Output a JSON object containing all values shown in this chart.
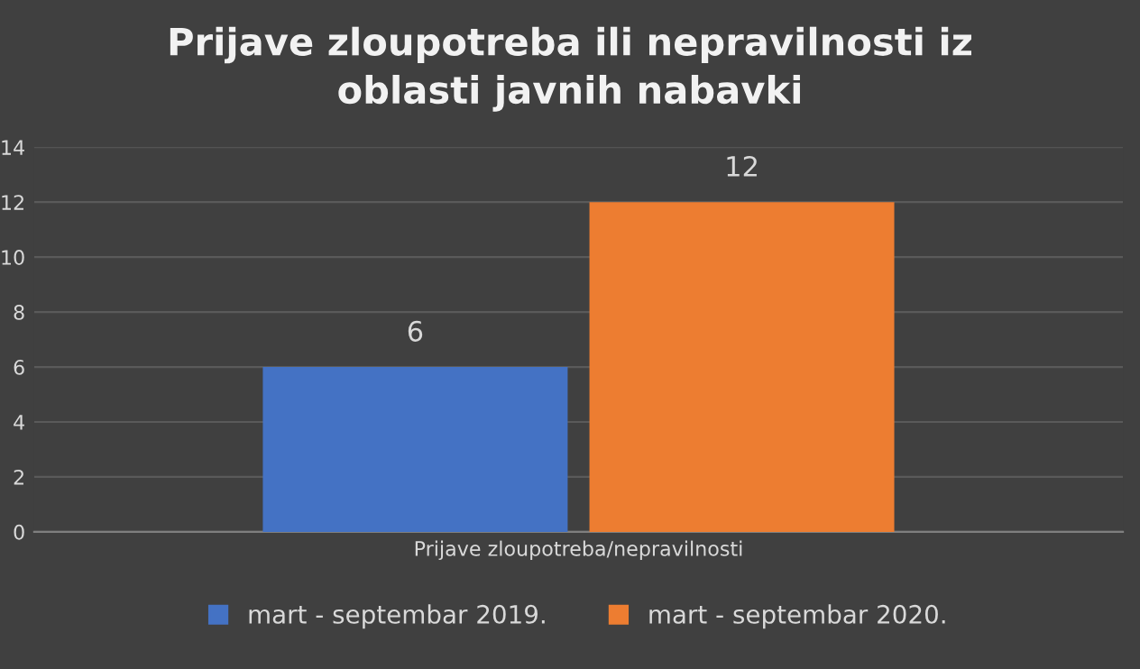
{
  "chart_data": {
    "type": "bar",
    "title": "Prijave zloupotreba ili nepravilnosti iz\noblasti javnih nabavki",
    "categories": [
      "Prijave zloupotreba/nepravilnosti"
    ],
    "series": [
      {
        "name": "mart - septembar 2019.",
        "color": "#4472c4",
        "values": [
          6
        ]
      },
      {
        "name": "mart - septembar 2020.",
        "color": "#ed7d31",
        "values": [
          12
        ]
      }
    ],
    "ylim": [
      0,
      14
    ],
    "yticks": [
      0,
      2,
      4,
      6,
      8,
      10,
      12,
      14
    ],
    "grid": "y",
    "legend": "bottom",
    "data_labels": true
  }
}
